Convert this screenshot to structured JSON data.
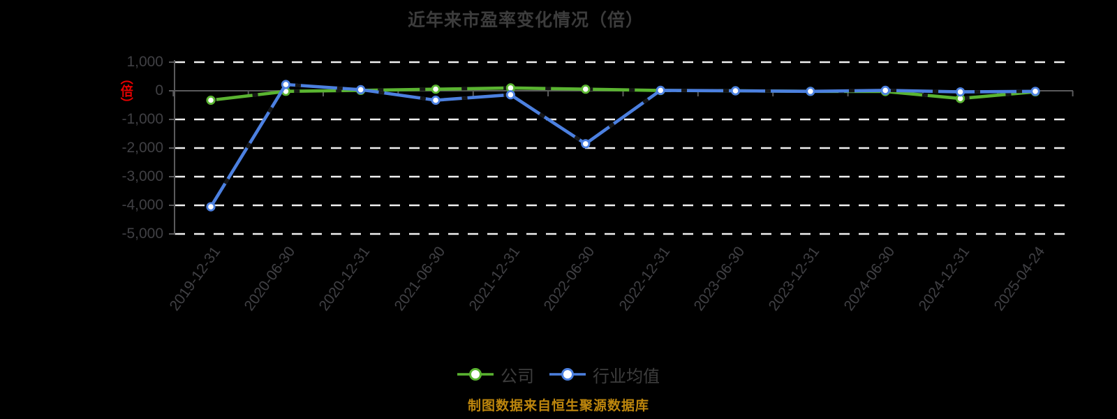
{
  "title": "近年来市盈率变化情况（倍）",
  "y_axis": {
    "unit_label": "（倍）",
    "tick_labels": [
      "1,000",
      "0",
      "-1,000",
      "-2,000",
      "-3,000",
      "-4,000",
      "-5,000"
    ]
  },
  "chart_data": {
    "type": "line",
    "title": "近年来市盈率变化情况（倍）",
    "categories": [
      "2019-12-31",
      "2020-06-30",
      "2020-12-31",
      "2021-06-30",
      "2021-12-31",
      "2022-06-30",
      "2022-12-31",
      "2023-06-30",
      "2023-12-31",
      "2024-06-30",
      "2024-12-31",
      "2025-04-24"
    ],
    "series": [
      {
        "name": "公司",
        "color": "#5ab431",
        "marker": "circle-white-fill",
        "values": [
          -330,
          -20,
          15,
          55,
          100,
          55,
          10,
          0,
          -20,
          -25,
          -270,
          -35
        ]
      },
      {
        "name": "行业均值",
        "color": "#4c80e0",
        "marker": "circle-white-fill",
        "values": [
          -4050,
          220,
          40,
          -330,
          -140,
          -1850,
          15,
          0,
          -20,
          15,
          -40,
          -20
        ]
      }
    ],
    "xlabel": "",
    "ylabel": "（倍）",
    "ylim": [
      -5000,
      1000
    ],
    "y_ticks": [
      1000,
      0,
      -1000,
      -2000,
      -3000,
      -4000,
      -5000
    ],
    "grid": true,
    "gridline_style": "dashed",
    "legend_position": "bottom",
    "x_label_rotation_deg": -54
  },
  "legend": {
    "items": [
      {
        "label": "公司",
        "color": "#5ab431"
      },
      {
        "label": "行业均值",
        "color": "#4c80e0"
      }
    ]
  },
  "footer": {
    "source_note": "制图数据来自恒生聚源数据库"
  },
  "colors": {
    "background": "#000000",
    "title_text": "#3c3c3c",
    "axis_text": "#404044",
    "unit_label": "#e60000",
    "gridline": "#f0f0f0",
    "axis_line": "#5a5a5c",
    "company_green": "#5ab431",
    "industry_blue": "#4c80e0",
    "footer_text": "#bd860d"
  }
}
